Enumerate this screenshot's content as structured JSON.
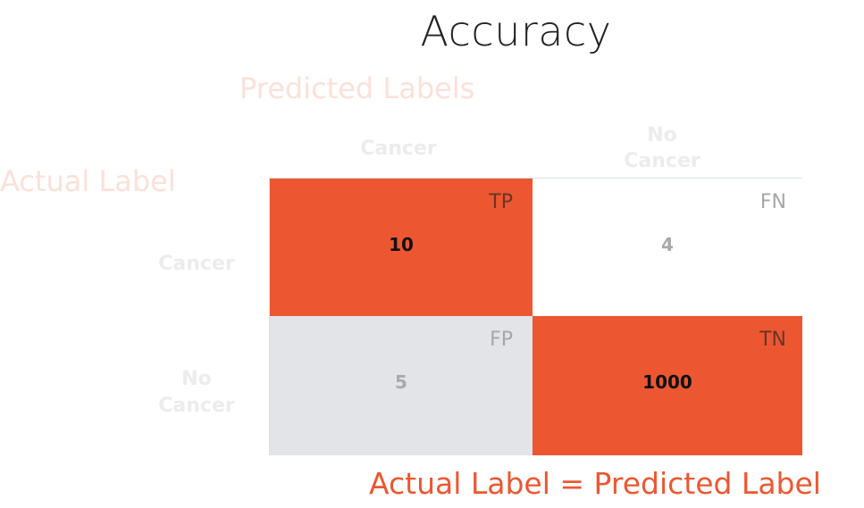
{
  "title": "Accuracy",
  "predicted_heading": "Predicted Labels",
  "actual_heading": "Actual Label",
  "columns": {
    "cancer": "Cancer",
    "no_cancer_line1": "No",
    "no_cancer_line2": "Cancer"
  },
  "rows": {
    "cancer": "Cancer",
    "no_cancer_line1": "No",
    "no_cancer_line2": "Cancer"
  },
  "matrix": {
    "tp": {
      "tag": "TP",
      "value": "10"
    },
    "fn": {
      "tag": "FN",
      "value": "4"
    },
    "fp": {
      "tag": "FP",
      "value": "5"
    },
    "tn": {
      "tag": "TN",
      "value": "1000"
    }
  },
  "formula": "Actual Label = Predicted Label",
  "colors": {
    "highlight": "#ec5732",
    "muted_cell": "#e2e4e7",
    "faded_heading": "#fbe1d9",
    "faded_label": "#ececec"
  }
}
